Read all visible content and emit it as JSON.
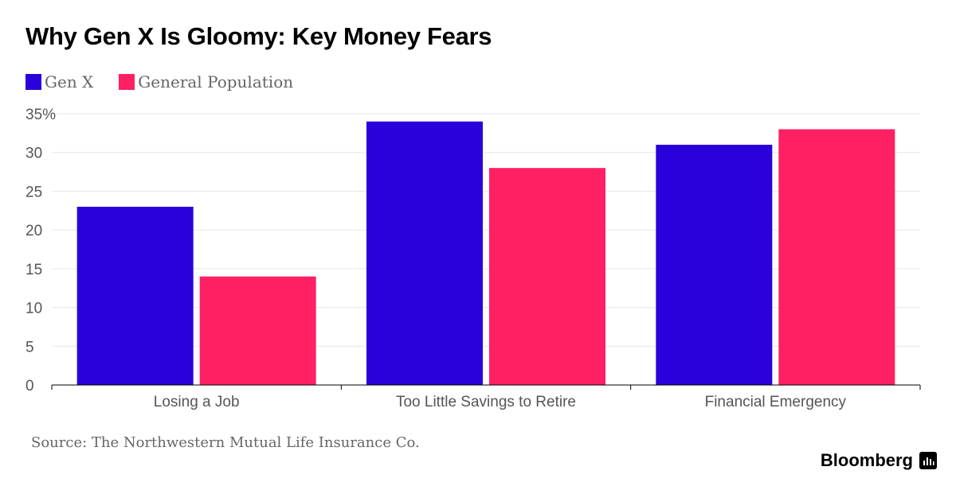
{
  "header": {
    "title": "Why Gen X Is Gloomy: Key Money Fears"
  },
  "legend": [
    {
      "label": "Gen X",
      "color": "#2a00db"
    },
    {
      "label": "General Population",
      "color": "#ff1f63"
    }
  ],
  "chart_data": {
    "type": "bar",
    "title": "Why Gen X Is Gloomy: Key Money Fears",
    "categories": [
      "Losing a Job",
      "Too Little Savings to Retire",
      "Financial Emergency"
    ],
    "series": [
      {
        "name": "Gen X",
        "values": [
          23,
          34,
          31
        ],
        "color": "#2a00db"
      },
      {
        "name": "General Population",
        "values": [
          14,
          28,
          33
        ],
        "color": "#ff1f63"
      }
    ],
    "y_ticks": [
      "0",
      "5",
      "10",
      "15",
      "20",
      "25",
      "30",
      "35%"
    ],
    "ylim": [
      0,
      35
    ],
    "grid": true,
    "legend_position": "top-left"
  },
  "footer": {
    "source": "Source: The Northwestern Mutual Life Insurance Co.",
    "brand": "Bloomberg"
  }
}
